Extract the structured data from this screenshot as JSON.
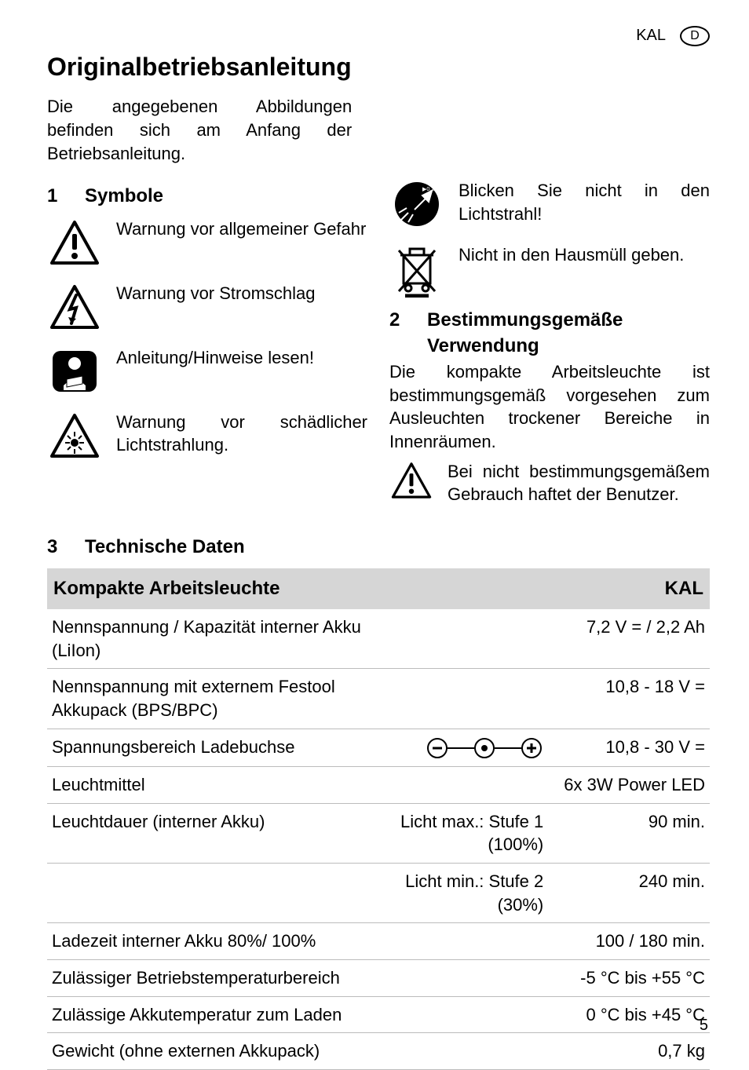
{
  "header": {
    "model": "KAL",
    "lang": "D"
  },
  "title": "Originalbetriebsanleitung",
  "intro": "Die angegebenen Abbildungen befinden sich am Anfang der Betriebsanleitung.",
  "section1": {
    "num": "1",
    "title": "Symbole"
  },
  "symbols_left": [
    {
      "text": "Warnung vor allgemeiner Gefahr"
    },
    {
      "text": "Warnung vor Stromschlag"
    },
    {
      "text": "Anleitung/Hinweise lesen!"
    },
    {
      "text": "Warnung vor schädlicher Lichtstrahlung."
    }
  ],
  "symbols_right": [
    {
      "text": "Blicken Sie nicht in den Lichtstrahl!"
    },
    {
      "text": "Nicht in den Hausmüll geben."
    }
  ],
  "section2": {
    "num": "2",
    "title": "Bestimmungsgemäße Verwendung"
  },
  "section2_body": "Die kompakte Arbeitsleuchte ist bestimmungsgemäß vorgesehen zum Ausleuchten trockener Bereiche in Innenräumen.",
  "section2_warn": "Bei nicht bestimmungsgemäßem Gebrauch haftet der Benutzer.",
  "section3": {
    "num": "3",
    "title": "Technische Daten"
  },
  "table": {
    "head_left": "Kompakte Arbeitsleuchte",
    "head_right": "KAL",
    "rows": [
      {
        "label": "Nennspannung / Kapazität interner Akku (LiIon)",
        "mid": "",
        "value": "7,2 V = / 2,2 Ah"
      },
      {
        "label": "Nennspannung mit externem Festool Akkupack (BPS/BPC)",
        "mid": "",
        "value": "10,8 - 18 V ="
      },
      {
        "label": "Spannungsbereich Ladebuchse",
        "mid": "__POLARITY__",
        "value": "10,8 - 30 V ="
      },
      {
        "label": "Leuchtmittel",
        "mid": "",
        "value": "6x 3W Power LED"
      },
      {
        "label": "Leuchtdauer (interner Akku)",
        "mid": "Licht max.: Stufe 1 (100%)",
        "value": "90 min."
      },
      {
        "label": "",
        "mid": "Licht min.: Stufe 2 (30%)",
        "value": "240 min."
      },
      {
        "label": "Ladezeit interner Akku 80%/ 100%",
        "mid": "",
        "value": "100 / 180 min."
      },
      {
        "label": "Zulässiger Betriebstemperaturbereich",
        "mid": "",
        "value": "-5 °C bis +55 °C"
      },
      {
        "label": "Zulässige Akkutemperatur zum Laden",
        "mid": "",
        "value": "0 °C bis +45 °C"
      },
      {
        "label": "Gewicht (ohne externen Akkupack)",
        "mid": "",
        "value": "0,7 kg"
      }
    ]
  },
  "page_number": "5"
}
